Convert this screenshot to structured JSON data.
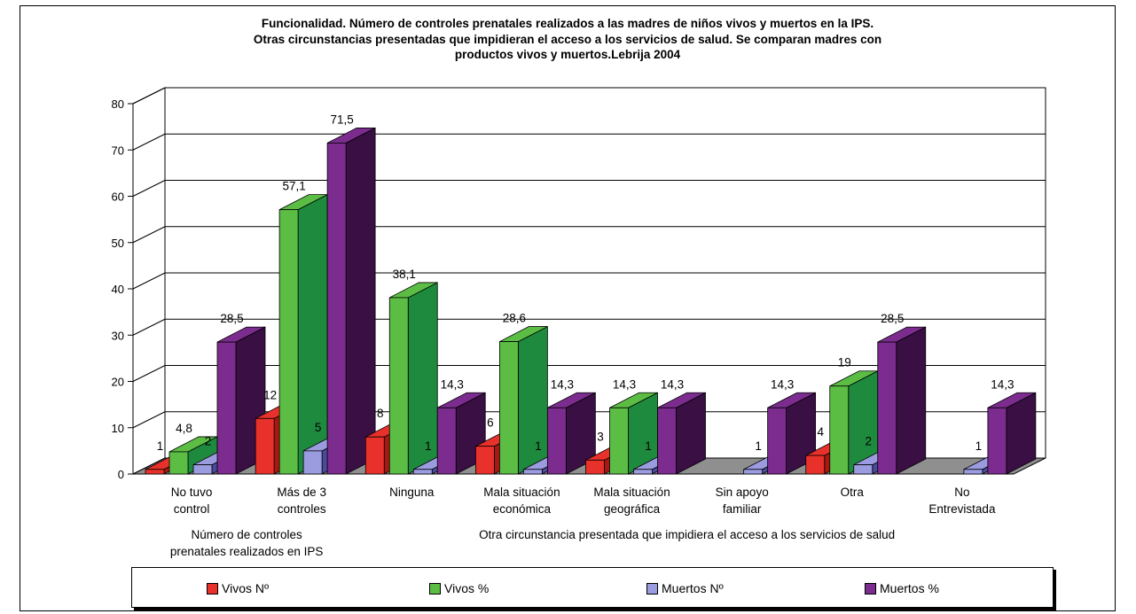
{
  "chart_data": {
    "type": "bar",
    "title": "Funcionalidad. Número de controles prenatales realizados a las madres de niños vivos y muertos en la IPS. Otras circunstancias presentadas que impidieran el acceso a los servicios de salud. Se comparan madres con productos vivos y muertos.Lebrija 2004",
    "title_lines": [
      "Funcionalidad. Número de controles prenatales realizados a las madres de niños vivos y muertos en la IPS.",
      "Otras circunstancias presentadas que impidieran el acceso a los servicios de salud. Se comparan madres con",
      "productos vivos y muertos.Lebrija 2004"
    ],
    "categories": [
      [
        "No tuvo",
        "control"
      ],
      [
        "Más de 3",
        "controles"
      ],
      [
        "Ninguna"
      ],
      [
        "Mala situación",
        "económica"
      ],
      [
        "Mala situación",
        "geográfica"
      ],
      [
        "Sin apoyo",
        "familiar"
      ],
      [
        "Otra"
      ],
      [
        "No",
        "Entrevistada"
      ]
    ],
    "groups": [
      {
        "label": [
          "Número de controles",
          "prenatales realizados en IPS"
        ]
      },
      {
        "label": [
          "Otra circunstancia presentada que impidiera el acceso a los servicios de salud"
        ]
      }
    ],
    "series": [
      {
        "name": "Vivos Nº",
        "color": "#e8312a",
        "dark": "#a81712",
        "values": [
          1,
          12,
          8,
          6,
          3,
          null,
          4,
          null
        ],
        "labels": [
          "1",
          "12",
          "8",
          "6",
          "3",
          "",
          "4",
          ""
        ]
      },
      {
        "name": "Vivos %",
        "color": "#5cbd45",
        "dark": "#1e8a3e",
        "values": [
          4.8,
          57.1,
          38.1,
          28.6,
          14.3,
          null,
          19,
          null
        ],
        "labels": [
          "4,8",
          "57,1",
          "38,1",
          "28,6",
          "14,3",
          "",
          "19",
          ""
        ]
      },
      {
        "name": "Muertos Nº",
        "color": "#9b9be0",
        "dark": "#4a4a9a",
        "values": [
          2,
          5,
          1,
          1,
          1,
          1,
          2,
          1
        ],
        "labels": [
          "2",
          "5",
          "1",
          "1",
          "1",
          "1",
          "2",
          "1"
        ]
      },
      {
        "name": "Muertos %",
        "color": "#7b2c8e",
        "dark": "#3a0f44",
        "values": [
          28.5,
          71.5,
          14.3,
          14.3,
          14.3,
          14.3,
          28.5,
          14.3
        ],
        "labels": [
          "28,5",
          "71,5",
          "14,3",
          "14,3",
          "14,3",
          "14,3",
          "28,5",
          "14,3"
        ]
      }
    ],
    "y_ticks": [
      "0",
      "10",
      "20",
      "30",
      "40",
      "50",
      "60",
      "70",
      "80"
    ],
    "ylim": [
      0,
      80
    ],
    "grid": true,
    "legend_position": "bottom"
  }
}
